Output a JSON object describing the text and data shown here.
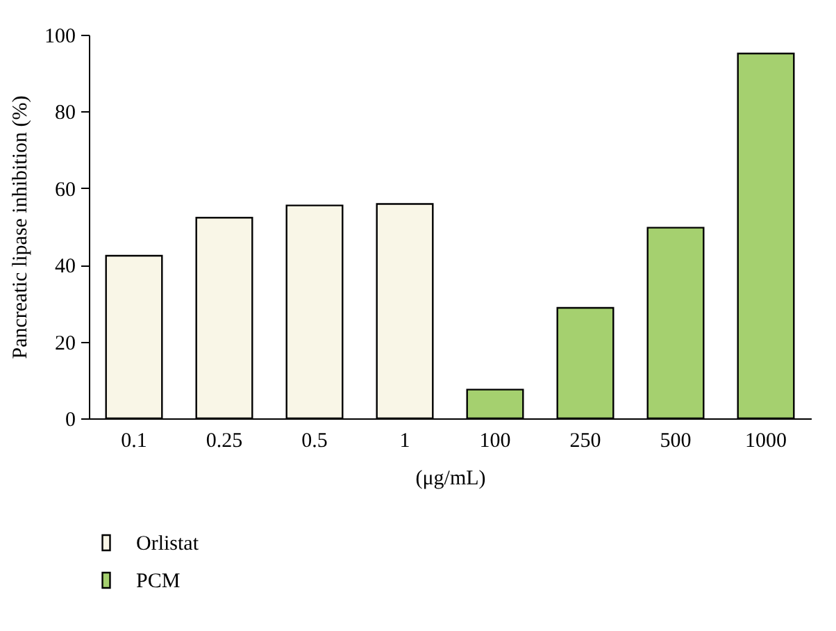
{
  "chart_data": {
    "type": "bar",
    "ylabel": "Pancreatic lipase inhibition (%)",
    "xlabel": "(μg/mL)",
    "categories": [
      "0.1",
      "0.25",
      "0.5",
      "1",
      "100",
      "250",
      "500",
      "1000"
    ],
    "series": [
      {
        "name": "Orlistat",
        "color": "#f9f6e7",
        "values": [
          42.4,
          52.3,
          55.5,
          55.9,
          null,
          null,
          null,
          null
        ]
      },
      {
        "name": "PCM",
        "color": "#a5d06f",
        "values": [
          null,
          null,
          null,
          null,
          7.5,
          28.8,
          49.7,
          95.1
        ]
      }
    ],
    "ylim": [
      0,
      100
    ],
    "yticks": [
      0,
      20,
      40,
      60,
      80,
      100
    ],
    "grid": false,
    "legend": "bottom left"
  }
}
